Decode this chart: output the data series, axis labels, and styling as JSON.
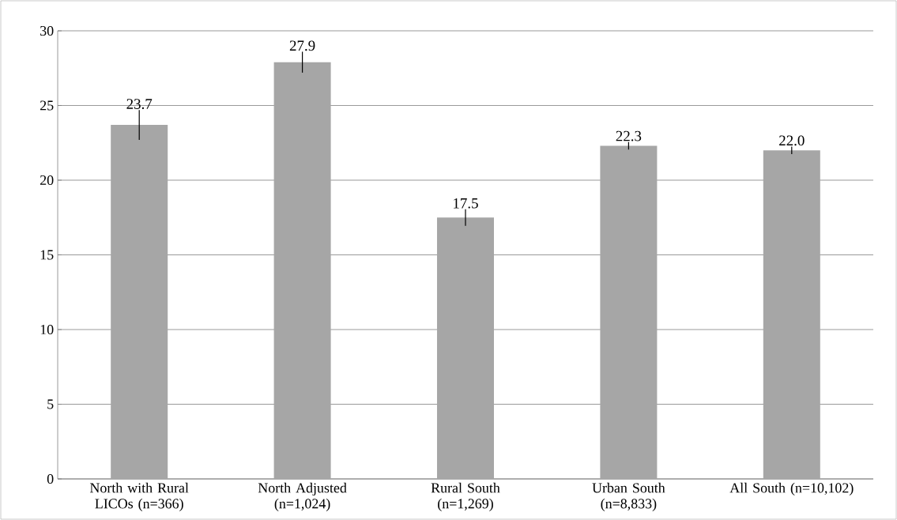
{
  "chart_data": {
    "type": "bar",
    "categories": [
      "North with Rural LICOs (n=366)",
      "North Adjusted (n=1,024)",
      "Rural South (n=1,269)",
      "Urban South (n=8,833)",
      "All South (n=10,102)"
    ],
    "values": [
      23.7,
      27.9,
      17.5,
      22.3,
      22.0
    ],
    "errors": [
      1.0,
      0.7,
      0.55,
      0.25,
      0.25
    ],
    "value_labels": [
      "23.7",
      "27.9",
      "17.5",
      "22.3",
      "22.0"
    ],
    "color": "#a6a6a6",
    "ylim": [
      0,
      30
    ],
    "yticks": [
      0,
      5,
      10,
      15,
      20,
      25,
      30
    ],
    "grid": "y"
  }
}
